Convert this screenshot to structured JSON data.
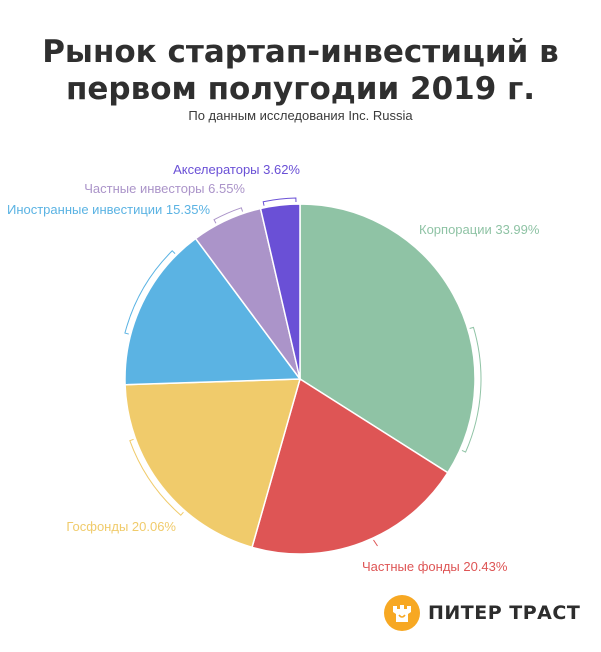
{
  "title_line1": "Рынок стартап-инвестиций в",
  "title_line2": "первом полугодии 2019 г.",
  "subtitle": "По данным исследования Inc. Russia",
  "brand": {
    "name": "ПИТЕР ТРАСТ",
    "mark_color": "#f7a823",
    "icon": "bag-icon"
  },
  "chart_data": {
    "type": "pie",
    "unit": "%",
    "slices": [
      {
        "label": "Корпорации",
        "value": 33.99,
        "color": "#8fc3a5"
      },
      {
        "label": "Частные фонды",
        "value": 20.43,
        "color": "#de5555"
      },
      {
        "label": "Госфонды",
        "value": 20.06,
        "color": "#f0cb6b"
      },
      {
        "label": "Иностранные инвестиции",
        "value": 15.35,
        "color": "#5bb3e3"
      },
      {
        "label": "Частные инвесторы",
        "value": 6.55,
        "color": "#ab94c9"
      },
      {
        "label": "Акселераторы",
        "value": 3.62,
        "color": "#6a50d6"
      }
    ]
  }
}
